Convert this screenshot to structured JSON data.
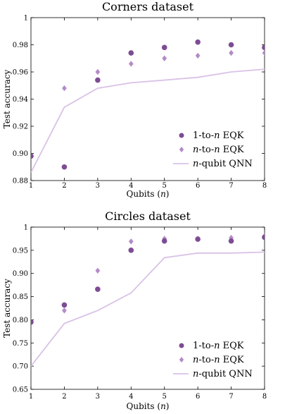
{
  "colors": {
    "one_to_n": "#7d4c93",
    "n_to_n": "#b48bc8",
    "qnn": "#d9c2e6"
  },
  "legend_labels": [
    "1-to-n EQK",
    "n-to-n EQK",
    "n-qubit QNN"
  ],
  "chart_data": [
    {
      "type": "scatter",
      "title": "Corners dataset",
      "xlabel": "Qubits (n)",
      "ylabel": "Test accuracy",
      "x": [
        1,
        2,
        3,
        4,
        5,
        6,
        7,
        8
      ],
      "xlim": [
        1,
        8
      ],
      "ylim": [
        0.88,
        1.0
      ],
      "yticks": [
        0.88,
        0.9,
        0.92,
        0.94,
        0.96,
        0.98,
        1.0
      ],
      "ytick_labels": [
        "0.88",
        "0.90",
        "0.92",
        "0.94",
        "0.96",
        "0.98",
        "1"
      ],
      "legend": "bottom-right",
      "grid": false,
      "series": [
        {
          "name": "1-to-n EQK",
          "marker": "circle",
          "values": [
            0.898,
            0.89,
            0.954,
            0.974,
            0.978,
            0.982,
            0.98,
            0.978
          ]
        },
        {
          "name": "n-to-n EQK",
          "marker": "diamond",
          "values": [
            0.898,
            0.948,
            0.96,
            0.966,
            0.97,
            0.972,
            0.974,
            0.974
          ]
        },
        {
          "name": "n-qubit QNN",
          "marker": "line",
          "values": [
            0.886,
            0.934,
            0.948,
            0.952,
            0.954,
            0.956,
            0.96,
            0.962
          ]
        }
      ]
    },
    {
      "type": "scatter",
      "title": "Circles dataset",
      "xlabel": "Qubits (n)",
      "ylabel": "Test accuracy",
      "x": [
        1,
        2,
        3,
        4,
        5,
        6,
        7,
        8
      ],
      "xlim": [
        1,
        8
      ],
      "ylim": [
        0.65,
        1.0
      ],
      "yticks": [
        0.65,
        0.7,
        0.75,
        0.8,
        0.85,
        0.9,
        0.95,
        1.0
      ],
      "ytick_labels": [
        "0.65",
        "0.70",
        "0.75",
        "0.80",
        "0.85",
        "0.90",
        "0.95",
        "1"
      ],
      "legend": "bottom-right",
      "grid": false,
      "series": [
        {
          "name": "1-to-n EQK",
          "marker": "circle",
          "values": [
            0.795,
            0.832,
            0.866,
            0.95,
            0.97,
            0.974,
            0.97,
            0.978
          ]
        },
        {
          "name": "n-to-n EQK",
          "marker": "diamond",
          "values": [
            0.797,
            0.82,
            0.906,
            0.969,
            0.975,
            0.975,
            0.977,
            0.981
          ]
        },
        {
          "name": "n-qubit QNN",
          "marker": "line",
          "values": [
            0.7,
            0.792,
            0.82,
            0.858,
            0.934,
            0.944,
            0.944,
            0.946
          ]
        }
      ]
    }
  ]
}
